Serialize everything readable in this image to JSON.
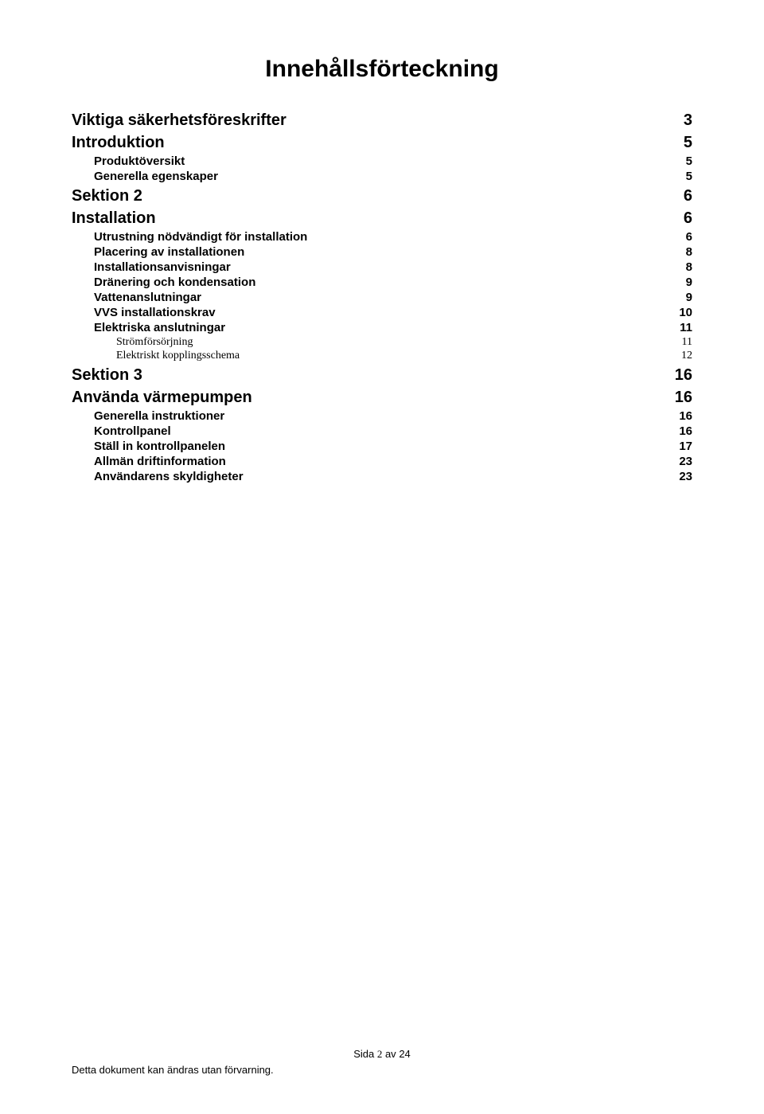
{
  "title": "Innehållsförteckning",
  "colors": {
    "text": "#000000",
    "background": "#ffffff"
  },
  "toc": [
    {
      "level": 1,
      "label": "Viktiga säkerhetsföreskrifter",
      "page": "3"
    },
    {
      "level": 1,
      "label": "Introduktion",
      "page": "5"
    },
    {
      "level": 2,
      "label": "Produktöversikt",
      "page": "5"
    },
    {
      "level": 2,
      "label": "Generella egenskaper",
      "page": "5"
    },
    {
      "level": 1,
      "label": "Sektion 2",
      "page": "6"
    },
    {
      "level": 1,
      "label": "Installation",
      "page": "6"
    },
    {
      "level": 2,
      "label": "Utrustning nödvändigt för installation",
      "page": "6"
    },
    {
      "level": 2,
      "label": "Placering av installationen",
      "page": "8"
    },
    {
      "level": 2,
      "label": "Installationsanvisningar",
      "page": "8"
    },
    {
      "level": 2,
      "label": "Dränering och kondensation",
      "page": "9"
    },
    {
      "level": 2,
      "label": "Vattenanslutningar",
      "page": "9"
    },
    {
      "level": 2,
      "label": "VVS installationskrav",
      "page": "10"
    },
    {
      "level": 2,
      "label": "Elektriska anslutningar",
      "page": "11"
    },
    {
      "level": 3,
      "label": "Strömförsörjning",
      "page": "11"
    },
    {
      "level": 3,
      "label": "Elektriskt kopplingsschema",
      "page": "12"
    },
    {
      "level": 1,
      "label": "Sektion 3",
      "page": "16"
    },
    {
      "level": 1,
      "label": "Använda värmepumpen",
      "page": "16"
    },
    {
      "level": 2,
      "label": "Generella instruktioner",
      "page": "16"
    },
    {
      "level": 2,
      "label": "Kontrollpanel",
      "page": "16"
    },
    {
      "level": 2,
      "label": "Ställ in kontrollpanelen",
      "page": "17"
    },
    {
      "level": 2,
      "label": "Allmän driftinformation",
      "page": "23"
    },
    {
      "level": 2,
      "label": "Användarens skyldigheter",
      "page": "23"
    }
  ],
  "footer": {
    "page_label_prefix": "Sida ",
    "page_current": "2",
    "page_label_middle": " av ",
    "page_total": "24",
    "disclaimer": "Detta dokument kan ändras utan förvarning."
  }
}
